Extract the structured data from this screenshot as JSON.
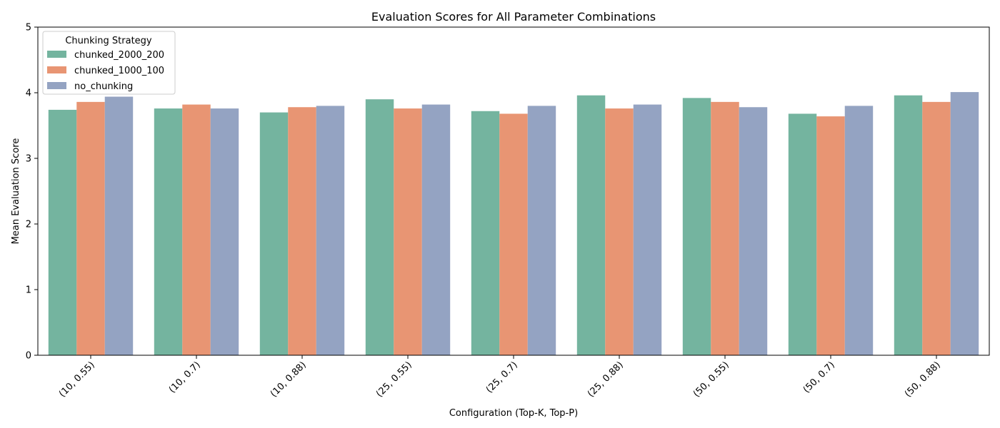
{
  "chart_data": {
    "type": "bar",
    "title": "Evaluation Scores for All Parameter Combinations",
    "xlabel": "Configuration (Top-K, Top-P)",
    "ylabel": "Mean Evaluation Score",
    "ylim": [
      0,
      5
    ],
    "yticks": [
      "0",
      "1",
      "2",
      "3",
      "4",
      "5"
    ],
    "categories": [
      "(10, 0.55)",
      "(10, 0.7)",
      "(10, 0.88)",
      "(25, 0.55)",
      "(25, 0.7)",
      "(25, 0.88)",
      "(50, 0.55)",
      "(50, 0.7)",
      "(50, 0.88)"
    ],
    "legend": {
      "title": "Chunking Strategy",
      "placement": "top-left"
    },
    "grid": false,
    "series": [
      {
        "name": "chunked_2000_200",
        "color": "#74b49f",
        "values": [
          3.74,
          3.76,
          3.7,
          3.9,
          3.72,
          3.96,
          3.92,
          3.68,
          3.96
        ]
      },
      {
        "name": "chunked_1000_100",
        "color": "#e89573",
        "values": [
          3.86,
          3.82,
          3.78,
          3.76,
          3.68,
          3.76,
          3.86,
          3.64,
          3.86
        ]
      },
      {
        "name": "no_chunking",
        "color": "#94a3c2",
        "values": [
          3.94,
          3.76,
          3.8,
          3.82,
          3.8,
          3.82,
          3.78,
          3.8,
          4.01
        ]
      }
    ]
  }
}
